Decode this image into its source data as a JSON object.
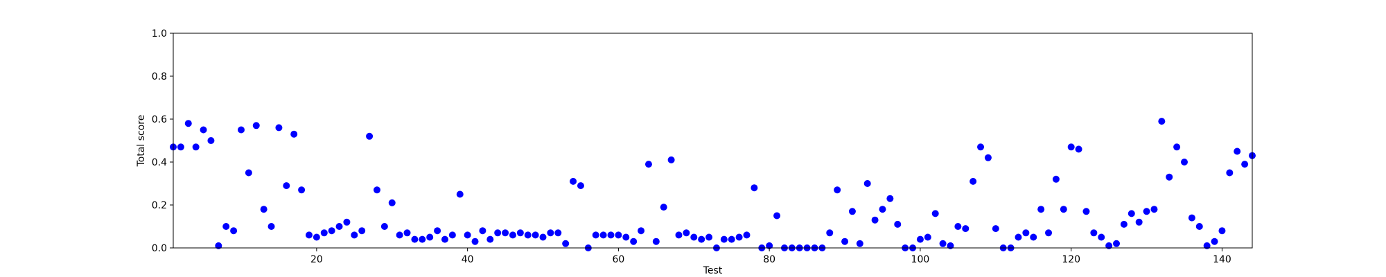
{
  "chart_data": {
    "type": "scatter",
    "title": "",
    "xlabel": "Test",
    "ylabel": "Total score",
    "xlim": [
      1,
      144
    ],
    "ylim": [
      0,
      1.0
    ],
    "x_ticks": [
      20,
      40,
      60,
      80,
      100,
      120,
      140
    ],
    "x_tick_labels": [
      "20",
      "40",
      "60",
      "80",
      "100",
      "120",
      "140"
    ],
    "y_ticks": [
      0.0,
      0.2,
      0.4,
      0.6,
      0.8,
      1.0
    ],
    "y_tick_labels": [
      "0.0",
      "0.2",
      "0.4",
      "0.6",
      "0.8",
      "1.0"
    ],
    "grid": false,
    "series": [
      {
        "color": "#0000ff",
        "marker": "circle",
        "x": [
          1,
          2,
          3,
          4,
          5,
          6,
          7,
          8,
          9,
          10,
          11,
          12,
          13,
          14,
          15,
          16,
          17,
          18,
          19,
          20,
          21,
          22,
          23,
          24,
          25,
          26,
          27,
          28,
          29,
          30,
          31,
          32,
          33,
          34,
          35,
          36,
          37,
          38,
          39,
          40,
          41,
          42,
          43,
          44,
          45,
          46,
          47,
          48,
          49,
          50,
          51,
          52,
          53,
          54,
          55,
          56,
          57,
          58,
          59,
          60,
          61,
          62,
          63,
          64,
          65,
          66,
          67,
          68,
          69,
          70,
          71,
          72,
          73,
          74,
          75,
          76,
          77,
          78,
          79,
          80,
          81,
          82,
          83,
          84,
          85,
          86,
          87,
          88,
          89,
          90,
          91,
          92,
          93,
          94,
          95,
          96,
          97,
          98,
          99,
          100,
          101,
          102,
          103,
          104,
          105,
          106,
          107,
          108,
          109,
          110,
          111,
          112,
          113,
          114,
          115,
          116,
          117,
          118,
          119,
          120,
          121,
          122,
          123,
          124,
          125,
          126,
          127,
          128,
          129,
          130,
          131,
          132,
          133,
          134,
          135,
          136,
          137,
          138,
          139,
          140,
          141,
          142,
          143,
          144
        ],
        "y": [
          0.47,
          0.47,
          0.58,
          0.47,
          0.55,
          0.5,
          0.01,
          0.1,
          0.08,
          0.55,
          0.35,
          0.57,
          0.18,
          0.1,
          0.56,
          0.29,
          0.53,
          0.27,
          0.06,
          0.05,
          0.07,
          0.08,
          0.1,
          0.12,
          0.06,
          0.08,
          0.52,
          0.27,
          0.1,
          0.21,
          0.06,
          0.07,
          0.04,
          0.04,
          0.05,
          0.08,
          0.04,
          0.06,
          0.25,
          0.06,
          0.03,
          0.08,
          0.04,
          0.07,
          0.07,
          0.06,
          0.07,
          0.06,
          0.06,
          0.05,
          0.07,
          0.07,
          0.02,
          0.31,
          0.29,
          0.0,
          0.06,
          0.06,
          0.06,
          0.06,
          0.05,
          0.03,
          0.08,
          0.39,
          0.03,
          0.19,
          0.41,
          0.06,
          0.07,
          0.05,
          0.04,
          0.05,
          0.0,
          0.04,
          0.04,
          0.05,
          0.06,
          0.28,
          0.0,
          0.01,
          0.15,
          0.0,
          0.0,
          0.0,
          0.0,
          0.0,
          0.0,
          0.07,
          0.27,
          0.03,
          0.17,
          0.02,
          0.3,
          0.13,
          0.18,
          0.23,
          0.11,
          0.0,
          0.0,
          0.04,
          0.05,
          0.16,
          0.02,
          0.01,
          0.1,
          0.09,
          0.31,
          0.47,
          0.42,
          0.09,
          0.0,
          0.0,
          0.05,
          0.07,
          0.05,
          0.18,
          0.07,
          0.32,
          0.18,
          0.47,
          0.46,
          0.17,
          0.07,
          0.05,
          0.01,
          0.02,
          0.11,
          0.16,
          0.12,
          0.17,
          0.18,
          0.59,
          0.33,
          0.47,
          0.4,
          0.14,
          0.1,
          0.01,
          0.03,
          0.08,
          0.35,
          0.45,
          0.39,
          0.43
        ]
      }
    ]
  }
}
